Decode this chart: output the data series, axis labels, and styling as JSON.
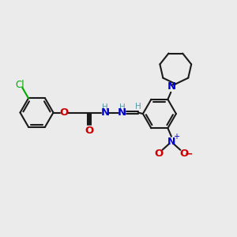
{
  "bg_color": "#ebebeb",
  "bond_color": "#1a1a1a",
  "bond_width": 1.5,
  "cl_color": "#00aa00",
  "o_color": "#cc0000",
  "n_color": "#0000cc",
  "h_color": "#5599aa",
  "figsize": [
    3.0,
    3.0
  ],
  "dpi": 100,
  "xlim": [
    0,
    10
  ],
  "ylim": [
    0,
    10
  ]
}
